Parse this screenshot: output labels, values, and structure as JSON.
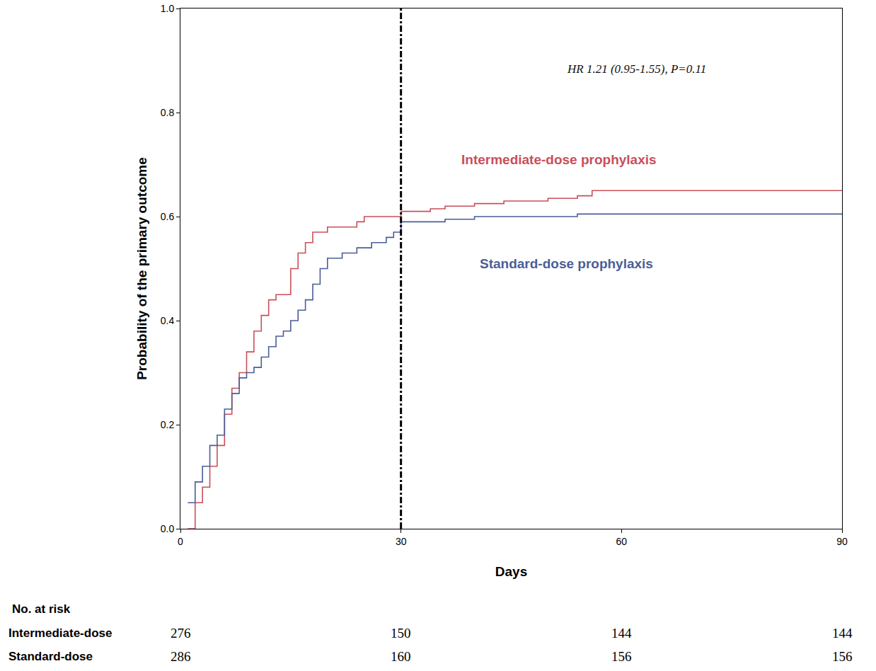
{
  "chart_data": {
    "type": "step",
    "x_title": "Days",
    "y_title": "Probability of the primary outcome",
    "annotation": "HR 1.21 (0.95-1.55), P=0.11",
    "reference_x": 30,
    "xlim": [
      0,
      90
    ],
    "xticks": [
      0,
      30,
      60,
      90
    ],
    "ylim": [
      0,
      1
    ],
    "yticks": [
      {
        "value": 0,
        "label": "0.0"
      },
      {
        "value": 0.2,
        "label": "0.2"
      },
      {
        "value": 0.4,
        "label": "0.4"
      },
      {
        "value": 0.6,
        "label": "0.6"
      },
      {
        "value": 0.8,
        "label": "0.8"
      },
      {
        "value": 1,
        "label": "1.0"
      }
    ],
    "grid": false,
    "series": [
      {
        "name": "Intermediate-dose prophylaxis",
        "color": "#c8505a",
        "line_style": "solid",
        "x": [
          1,
          2,
          3,
          4,
          5,
          6,
          7,
          8,
          9,
          10,
          11,
          12,
          13,
          15,
          16,
          17,
          18,
          20,
          24,
          25,
          30,
          34,
          36,
          40,
          44,
          50,
          54,
          56,
          90
        ],
        "values": [
          0.0,
          0.05,
          0.08,
          0.12,
          0.16,
          0.22,
          0.27,
          0.3,
          0.34,
          0.38,
          0.41,
          0.44,
          0.45,
          0.5,
          0.53,
          0.55,
          0.57,
          0.58,
          0.59,
          0.6,
          0.61,
          0.615,
          0.62,
          0.625,
          0.63,
          0.635,
          0.64,
          0.65,
          0.65
        ]
      },
      {
        "name": "Standard-dose prophylaxis",
        "color": "#4a5e98",
        "line_style": "solid",
        "x": [
          1,
          2,
          3,
          4,
          5,
          6,
          7,
          8,
          9,
          10,
          11,
          12,
          13,
          14,
          15,
          16,
          17,
          18,
          19,
          20,
          22,
          24,
          26,
          28,
          29,
          30,
          36,
          40,
          54,
          90
        ],
        "values": [
          0.05,
          0.09,
          0.12,
          0.16,
          0.18,
          0.23,
          0.26,
          0.29,
          0.3,
          0.31,
          0.33,
          0.35,
          0.37,
          0.38,
          0.4,
          0.42,
          0.44,
          0.47,
          0.5,
          0.52,
          0.53,
          0.54,
          0.55,
          0.56,
          0.57,
          0.59,
          0.595,
          0.6,
          0.605,
          0.605
        ]
      }
    ],
    "risk_table": {
      "title": "No. at risk",
      "times": [
        0,
        30,
        60,
        90
      ],
      "rows": [
        {
          "name": "Intermediate-dose",
          "values": [
            276,
            150,
            144,
            144
          ]
        },
        {
          "name": "Standard-dose",
          "values": [
            286,
            160,
            156,
            156
          ]
        }
      ]
    }
  }
}
